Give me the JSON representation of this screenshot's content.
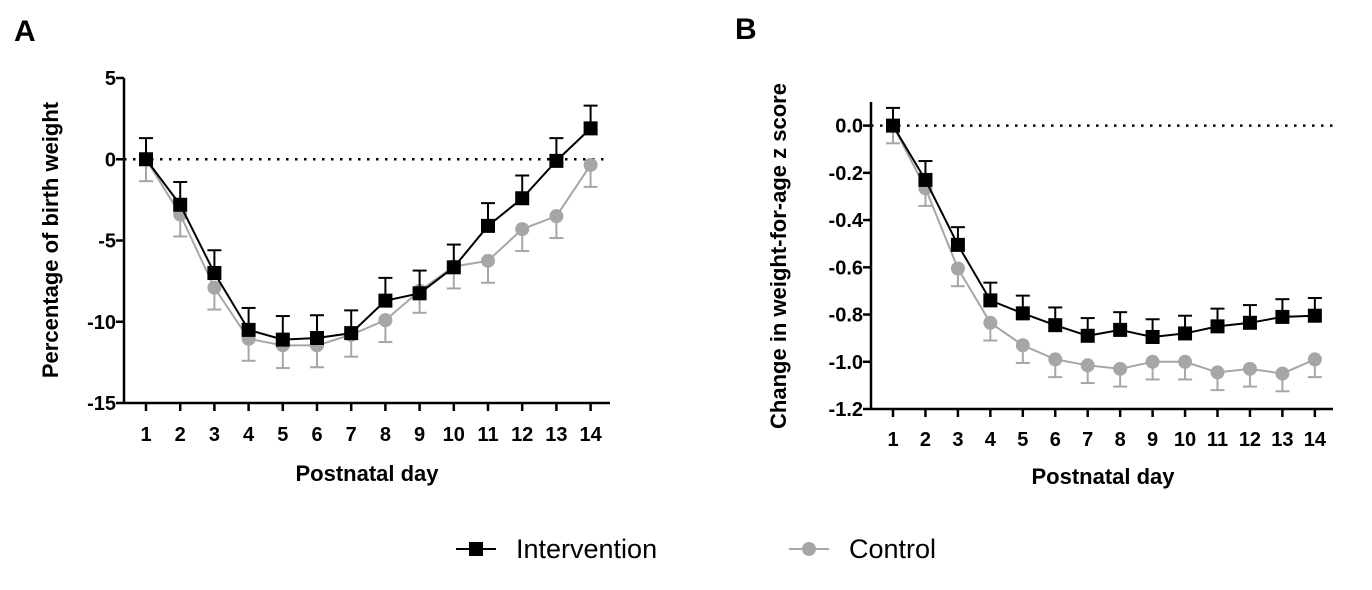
{
  "figure": {
    "panels": [
      "A",
      "B"
    ],
    "legend": [
      "Intervention",
      "Control"
    ]
  },
  "colors": {
    "intervention": "#000000",
    "control": "#a6a6a6"
  },
  "chart_data": [
    {
      "type": "line",
      "panel": "A",
      "xlabel": "Postnatal day",
      "ylabel": "Percentage of birth weight",
      "x": [
        1,
        2,
        3,
        4,
        5,
        6,
        7,
        8,
        9,
        10,
        11,
        12,
        13,
        14
      ],
      "ylim": [
        -15,
        5
      ],
      "yticks": [
        5,
        0,
        -5,
        -10,
        -15
      ],
      "ytick_labels": [
        "5",
        "0",
        "-5",
        "-10",
        "-15"
      ],
      "reference_line": 0,
      "grid": false,
      "series": [
        {
          "name": "Intervention",
          "marker": "square",
          "color": "#000000",
          "values": [
            0,
            -2.8,
            -7.0,
            -10.5,
            -11.1,
            -11.0,
            -10.7,
            -8.7,
            -8.25,
            -6.65,
            -4.1,
            -2.4,
            -0.1,
            1.9
          ],
          "errors": [
            1.3,
            1.4,
            1.4,
            1.35,
            1.45,
            1.4,
            1.4,
            1.4,
            1.4,
            1.4,
            1.4,
            1.4,
            1.4,
            1.4
          ]
        },
        {
          "name": "Control",
          "marker": "circle",
          "color": "#a6a6a6",
          "values": [
            0,
            -3.4,
            -7.9,
            -11.05,
            -11.45,
            -11.45,
            -10.8,
            -9.9,
            -8.1,
            -6.6,
            -6.25,
            -4.3,
            -3.5,
            -0.35
          ],
          "errors": [
            1.35,
            1.35,
            1.35,
            1.35,
            1.4,
            1.35,
            1.35,
            1.35,
            1.35,
            1.35,
            1.35,
            1.35,
            1.35,
            1.35
          ]
        }
      ]
    },
    {
      "type": "line",
      "panel": "B",
      "xlabel": "Postnatal day",
      "ylabel": "Change in weight-for-age z score",
      "x": [
        1,
        2,
        3,
        4,
        5,
        6,
        7,
        8,
        9,
        10,
        11,
        12,
        13,
        14
      ],
      "ylim": [
        -1.2,
        0.1
      ],
      "yticks": [
        0,
        -0.2,
        -0.4,
        -0.6,
        -0.8,
        -1.0,
        -1.2
      ],
      "ytick_labels": [
        "0.0",
        "-0.2",
        "-0.4",
        "-0.6",
        "-0.8",
        "-1.0",
        "-1.2"
      ],
      "reference_line": 0,
      "grid": false,
      "series": [
        {
          "name": "Intervention",
          "marker": "square",
          "color": "#000000",
          "values": [
            0,
            -0.23,
            -0.505,
            -0.74,
            -0.795,
            -0.845,
            -0.89,
            -0.865,
            -0.895,
            -0.88,
            -0.85,
            -0.835,
            -0.81,
            -0.805
          ],
          "errors": [
            0.075,
            0.08,
            0.075,
            0.075,
            0.075,
            0.075,
            0.075,
            0.075,
            0.075,
            0.075,
            0.075,
            0.075,
            0.075,
            0.075
          ]
        },
        {
          "name": "Control",
          "marker": "circle",
          "color": "#a6a6a6",
          "values": [
            0,
            -0.265,
            -0.605,
            -0.835,
            -0.93,
            -0.99,
            -1.015,
            -1.03,
            -1.0,
            -1.0,
            -1.045,
            -1.03,
            -1.05,
            -0.99
          ],
          "errors": [
            0.075,
            0.075,
            0.075,
            0.075,
            0.075,
            0.075,
            0.075,
            0.075,
            0.075,
            0.075,
            0.075,
            0.075,
            0.075,
            0.075
          ]
        }
      ]
    }
  ]
}
